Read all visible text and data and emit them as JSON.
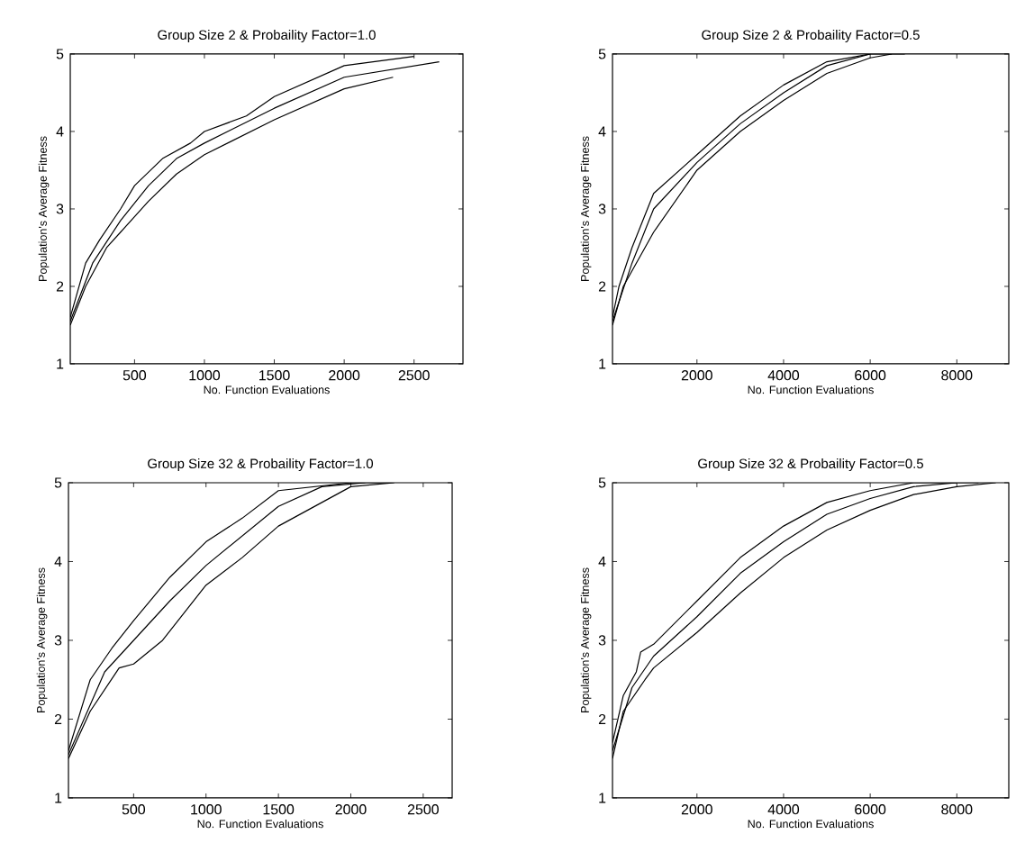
{
  "chart_data": [
    {
      "type": "line",
      "title": "Group Size 2 & Probaility Factor=1.0",
      "xlabel": "No. Function Evaluations",
      "ylabel": "Population's Average Fitness",
      "xlim": [
        40,
        2850
      ],
      "ylim": [
        1,
        5
      ],
      "xticks": [
        500,
        1000,
        1500,
        2000,
        2500
      ],
      "yticks": [
        1,
        2,
        3,
        4,
        5
      ],
      "series": [
        {
          "color": "#000000",
          "x": [
            40,
            150,
            250,
            400,
            500,
            700,
            900,
            1000,
            1300,
            1500,
            2000,
            2500
          ],
          "values": [
            1.6,
            2.3,
            2.6,
            3.0,
            3.3,
            3.65,
            3.85,
            4.0,
            4.2,
            4.45,
            4.85,
            4.97
          ]
        },
        {
          "color": "#000000",
          "x": [
            40,
            200,
            400,
            600,
            800,
            1000,
            1500,
            2000,
            2680
          ],
          "values": [
            1.55,
            2.3,
            2.85,
            3.3,
            3.65,
            3.85,
            4.3,
            4.7,
            4.9
          ]
        },
        {
          "color": "#000000",
          "x": [
            40,
            150,
            300,
            400,
            600,
            800,
            1000,
            1500,
            2000,
            2350
          ],
          "values": [
            1.5,
            2.0,
            2.5,
            2.7,
            3.1,
            3.45,
            3.7,
            4.15,
            4.55,
            4.7
          ]
        }
      ]
    },
    {
      "type": "line",
      "title": "Group Size 2 & Probaility Factor=0.5",
      "xlabel": "No. Function Evaluations",
      "ylabel": "Population's Average Fitness",
      "xlim": [
        50,
        9200
      ],
      "ylim": [
        1,
        5
      ],
      "xticks": [
        2000,
        4000,
        6000,
        8000
      ],
      "yticks": [
        1,
        2,
        3,
        4,
        5
      ],
      "series": [
        {
          "color": "#000000",
          "x": [
            50,
            200,
            500,
            1000,
            2000,
            3000,
            4000,
            5000,
            6000,
            6800
          ],
          "values": [
            1.6,
            2.0,
            2.5,
            3.2,
            3.7,
            4.2,
            4.6,
            4.9,
            5.0,
            5.0
          ]
        },
        {
          "color": "#000000",
          "x": [
            50,
            500,
            1000,
            2000,
            3000,
            4000,
            5000,
            6000
          ],
          "values": [
            1.55,
            2.3,
            3.0,
            3.6,
            4.1,
            4.5,
            4.85,
            5.0
          ]
        },
        {
          "color": "#000000",
          "x": [
            50,
            300,
            800,
            1000,
            2000,
            3000,
            4000,
            5000,
            6000,
            6500
          ],
          "values": [
            1.5,
            2.0,
            2.5,
            2.7,
            3.5,
            4.0,
            4.4,
            4.75,
            4.95,
            5.0
          ]
        }
      ]
    },
    {
      "type": "line",
      "title": "Group Size 32 & Probaility Factor=1.0",
      "xlabel": "No. Function Evaluations",
      "ylabel": "Population's Average Fitness",
      "xlim": [
        50,
        2700
      ],
      "ylim": [
        1,
        5
      ],
      "xticks": [
        500,
        1000,
        1500,
        2000,
        2500
      ],
      "yticks": [
        1,
        2,
        3,
        4,
        5
      ],
      "series": [
        {
          "color": "#000000",
          "x": [
            50,
            200,
            350,
            500,
            750,
            1000,
            1250,
            1500,
            2000,
            2250
          ],
          "values": [
            1.6,
            2.5,
            2.9,
            3.25,
            3.8,
            4.25,
            4.55,
            4.9,
            5.0,
            5.0
          ]
        },
        {
          "color": "#000000",
          "x": [
            50,
            300,
            500,
            750,
            1000,
            1500,
            1800,
            2100
          ],
          "values": [
            1.55,
            2.6,
            3.0,
            3.5,
            3.95,
            4.7,
            4.95,
            5.0
          ]
        },
        {
          "color": "#000000",
          "x": [
            50,
            200,
            400,
            500,
            700,
            1000,
            1250,
            1500,
            2000,
            2300
          ],
          "values": [
            1.5,
            2.1,
            2.65,
            2.7,
            3.0,
            3.7,
            4.05,
            4.45,
            4.95,
            5.0
          ]
        }
      ]
    },
    {
      "type": "line",
      "title": "Group Size 32 & Probaility Factor=0.5",
      "xlabel": "No. Function Evaluations",
      "ylabel": "Population's Average Fitness",
      "xlim": [
        50,
        9200
      ],
      "ylim": [
        1,
        5
      ],
      "xticks": [
        2000,
        4000,
        6000,
        8000
      ],
      "yticks": [
        1,
        2,
        3,
        4,
        5
      ],
      "series": [
        {
          "color": "#000000",
          "x": [
            50,
            300,
            600,
            700,
            1000,
            2000,
            3000,
            4000,
            5000,
            6000,
            7000,
            8500
          ],
          "values": [
            1.7,
            2.3,
            2.6,
            2.85,
            2.95,
            3.5,
            4.05,
            4.45,
            4.75,
            4.9,
            5.0,
            5.0
          ]
        },
        {
          "color": "#000000",
          "x": [
            50,
            500,
            1000,
            2000,
            3000,
            4000,
            5000,
            6000,
            7000,
            8000
          ],
          "values": [
            1.6,
            2.4,
            2.8,
            3.3,
            3.85,
            4.25,
            4.6,
            4.8,
            4.95,
            5.0
          ]
        },
        {
          "color": "#000000",
          "x": [
            50,
            300,
            800,
            1000,
            2000,
            3000,
            4000,
            5000,
            6000,
            7000,
            8000,
            8900
          ],
          "values": [
            1.5,
            2.1,
            2.5,
            2.65,
            3.1,
            3.6,
            4.05,
            4.4,
            4.65,
            4.85,
            4.95,
            5.0
          ]
        }
      ]
    }
  ]
}
